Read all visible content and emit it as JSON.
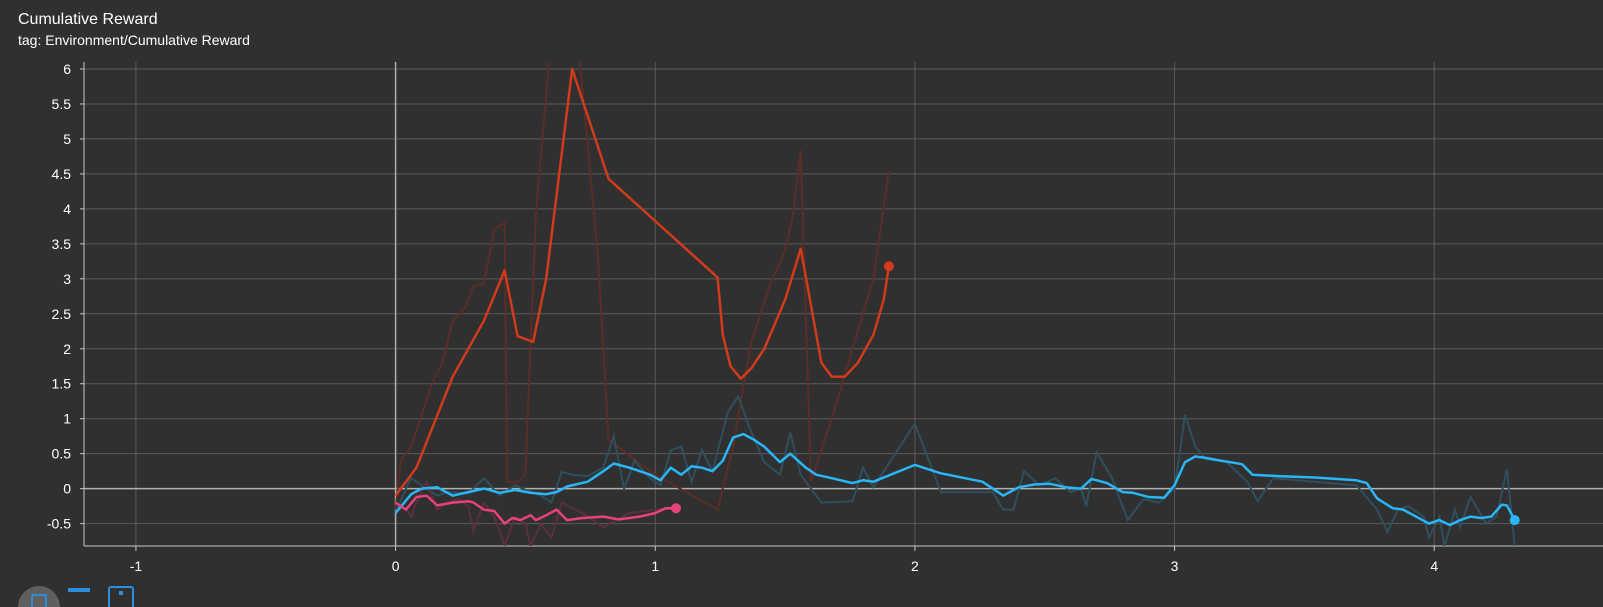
{
  "header": {
    "title": "Cumulative Reward",
    "tag": "tag: Environment/Cumulative Reward"
  },
  "toolbar": {
    "icons": [
      "fit-domain-icon",
      "toggle-log-scale-icon",
      "zoom-box-icon"
    ]
  },
  "colors": {
    "background": "#303030",
    "grid": "#5a5a5a",
    "axis": "#c8c8c8",
    "text": "#ffffff"
  },
  "chart_data": {
    "type": "line",
    "title": "Cumulative Reward",
    "xlabel": "",
    "ylabel": "",
    "xlim": [
      -1.2,
      4.65
    ],
    "ylim": [
      -0.82,
      6.1
    ],
    "x_ticks": [
      -1,
      0,
      1,
      2,
      3,
      4
    ],
    "y_ticks": [
      -0.5,
      0,
      0.5,
      1,
      1.5,
      2,
      2.5,
      3,
      3.5,
      4,
      4.5,
      5,
      5.5,
      6
    ],
    "x_tick_labels": [
      "-1",
      "0",
      "1",
      "2",
      "3",
      "4"
    ],
    "y_tick_labels": [
      "-0.5",
      "0",
      "0.5",
      "1",
      "1.5",
      "2",
      "2.5",
      "3",
      "3.5",
      "4",
      "4.5",
      "5",
      "5.5",
      "6"
    ],
    "grid": true,
    "legend": "none",
    "series": [
      {
        "color": "#d13b1c",
        "raw_color": "#5a2d26",
        "smoothed": [
          [
            0.0,
            -0.1
          ],
          [
            0.08,
            0.3
          ],
          [
            0.22,
            1.6
          ],
          [
            0.34,
            2.4
          ],
          [
            0.42,
            3.12
          ],
          [
            0.47,
            2.18
          ],
          [
            0.53,
            2.1
          ],
          [
            0.58,
            3.0
          ],
          [
            0.68,
            6.0
          ],
          [
            0.82,
            4.43
          ],
          [
            1.24,
            3.02
          ],
          [
            1.26,
            2.2
          ],
          [
            1.29,
            1.75
          ],
          [
            1.33,
            1.57
          ],
          [
            1.37,
            1.72
          ],
          [
            1.42,
            2.0
          ],
          [
            1.5,
            2.7
          ],
          [
            1.56,
            3.43
          ],
          [
            1.64,
            1.8
          ],
          [
            1.68,
            1.6
          ],
          [
            1.73,
            1.6
          ],
          [
            1.78,
            1.8
          ],
          [
            1.84,
            2.2
          ],
          [
            1.88,
            2.7
          ],
          [
            1.9,
            3.18
          ]
        ],
        "raw": [
          [
            0.0,
            -0.3
          ],
          [
            0.02,
            0.4
          ],
          [
            0.06,
            0.6
          ],
          [
            0.14,
            1.5
          ],
          [
            0.18,
            1.8
          ],
          [
            0.22,
            2.4
          ],
          [
            0.27,
            2.6
          ],
          [
            0.3,
            2.9
          ],
          [
            0.34,
            2.92
          ],
          [
            0.38,
            3.72
          ],
          [
            0.42,
            3.8
          ],
          [
            0.43,
            0.1
          ],
          [
            0.47,
            0.1
          ],
          [
            0.5,
            0.2
          ],
          [
            0.54,
            3.9
          ],
          [
            0.6,
            6.5
          ],
          [
            0.7,
            6.5
          ],
          [
            0.78,
            3.3
          ],
          [
            0.82,
            0.7
          ],
          [
            1.0,
            0.2
          ],
          [
            1.24,
            -0.3
          ],
          [
            1.3,
            0.6
          ],
          [
            1.37,
            2.1
          ],
          [
            1.44,
            2.9
          ],
          [
            1.5,
            3.4
          ],
          [
            1.53,
            3.9
          ],
          [
            1.56,
            4.84
          ],
          [
            1.6,
            0.1
          ],
          [
            1.68,
            1.0
          ],
          [
            1.76,
            2.0
          ],
          [
            1.84,
            3.0
          ],
          [
            1.9,
            4.55
          ]
        ],
        "end_point": [
          1.9,
          3.18
        ]
      },
      {
        "color": "#29b6f6",
        "raw_color": "#2f4f5d",
        "smoothed": [
          [
            0.0,
            -0.35
          ],
          [
            0.06,
            -0.08
          ],
          [
            0.1,
            0.0
          ],
          [
            0.16,
            0.02
          ],
          [
            0.22,
            -0.1
          ],
          [
            0.28,
            -0.05
          ],
          [
            0.34,
            0.0
          ],
          [
            0.4,
            -0.06
          ],
          [
            0.46,
            -0.02
          ],
          [
            0.52,
            -0.06
          ],
          [
            0.58,
            -0.08
          ],
          [
            0.62,
            -0.05
          ],
          [
            0.66,
            0.03
          ],
          [
            0.74,
            0.1
          ],
          [
            0.8,
            0.25
          ],
          [
            0.84,
            0.36
          ],
          [
            0.9,
            0.3
          ],
          [
            0.94,
            0.25
          ],
          [
            0.98,
            0.2
          ],
          [
            1.02,
            0.12
          ],
          [
            1.06,
            0.3
          ],
          [
            1.1,
            0.2
          ],
          [
            1.14,
            0.32
          ],
          [
            1.18,
            0.3
          ],
          [
            1.22,
            0.25
          ],
          [
            1.26,
            0.4
          ],
          [
            1.3,
            0.73
          ],
          [
            1.34,
            0.78
          ],
          [
            1.38,
            0.7
          ],
          [
            1.42,
            0.6
          ],
          [
            1.48,
            0.38
          ],
          [
            1.52,
            0.5
          ],
          [
            1.58,
            0.3
          ],
          [
            1.62,
            0.2
          ],
          [
            1.68,
            0.15
          ],
          [
            1.76,
            0.08
          ],
          [
            1.8,
            0.12
          ],
          [
            1.84,
            0.1
          ],
          [
            1.92,
            0.22
          ],
          [
            2.0,
            0.34
          ],
          [
            2.1,
            0.22
          ],
          [
            2.26,
            0.1
          ],
          [
            2.34,
            -0.1
          ],
          [
            2.4,
            0.02
          ],
          [
            2.46,
            0.06
          ],
          [
            2.52,
            0.07
          ],
          [
            2.58,
            0.02
          ],
          [
            2.64,
            0.0
          ],
          [
            2.68,
            0.14
          ],
          [
            2.74,
            0.08
          ],
          [
            2.8,
            -0.05
          ],
          [
            2.84,
            -0.06
          ],
          [
            2.9,
            -0.12
          ],
          [
            2.96,
            -0.13
          ],
          [
            3.0,
            0.05
          ],
          [
            3.04,
            0.38
          ],
          [
            3.08,
            0.46
          ],
          [
            3.12,
            0.44
          ],
          [
            3.18,
            0.4
          ],
          [
            3.26,
            0.35
          ],
          [
            3.3,
            0.2
          ],
          [
            3.4,
            0.18
          ],
          [
            3.54,
            0.16
          ],
          [
            3.7,
            0.12
          ],
          [
            3.74,
            0.08
          ],
          [
            3.78,
            -0.14
          ],
          [
            3.84,
            -0.28
          ],
          [
            3.88,
            -0.3
          ],
          [
            3.92,
            -0.38
          ],
          [
            3.98,
            -0.5
          ],
          [
            4.02,
            -0.45
          ],
          [
            4.06,
            -0.52
          ],
          [
            4.1,
            -0.45
          ],
          [
            4.14,
            -0.4
          ],
          [
            4.18,
            -0.42
          ],
          [
            4.22,
            -0.4
          ],
          [
            4.26,
            -0.23
          ],
          [
            4.28,
            -0.24
          ],
          [
            4.31,
            -0.45
          ]
        ],
        "raw": [
          [
            0.0,
            -0.35
          ],
          [
            0.04,
            0.0
          ],
          [
            0.06,
            0.15
          ],
          [
            0.1,
            0.05
          ],
          [
            0.16,
            -0.1
          ],
          [
            0.2,
            -0.05
          ],
          [
            0.28,
            -0.07
          ],
          [
            0.34,
            0.15
          ],
          [
            0.4,
            -0.1
          ],
          [
            0.46,
            0.05
          ],
          [
            0.52,
            -0.05
          ],
          [
            0.56,
            -0.1
          ],
          [
            0.6,
            -0.2
          ],
          [
            0.64,
            0.24
          ],
          [
            0.68,
            0.2
          ],
          [
            0.74,
            0.18
          ],
          [
            0.8,
            0.3
          ],
          [
            0.84,
            0.75
          ],
          [
            0.88,
            0.0
          ],
          [
            0.92,
            0.4
          ],
          [
            0.98,
            0.15
          ],
          [
            1.02,
            0.05
          ],
          [
            1.06,
            0.55
          ],
          [
            1.1,
            0.6
          ],
          [
            1.14,
            0.1
          ],
          [
            1.18,
            0.55
          ],
          [
            1.22,
            0.25
          ],
          [
            1.28,
            1.1
          ],
          [
            1.32,
            1.32
          ],
          [
            1.36,
            0.9
          ],
          [
            1.42,
            0.38
          ],
          [
            1.48,
            0.2
          ],
          [
            1.52,
            0.8
          ],
          [
            1.56,
            0.2
          ],
          [
            1.64,
            -0.2
          ],
          [
            1.76,
            -0.18
          ],
          [
            1.8,
            0.3
          ],
          [
            1.84,
            0.02
          ],
          [
            2.0,
            0.93
          ],
          [
            2.1,
            -0.05
          ],
          [
            2.3,
            -0.05
          ],
          [
            2.34,
            -0.3
          ],
          [
            2.38,
            -0.3
          ],
          [
            2.42,
            0.25
          ],
          [
            2.48,
            0.05
          ],
          [
            2.54,
            0.15
          ],
          [
            2.6,
            -0.05
          ],
          [
            2.64,
            0.0
          ],
          [
            2.66,
            -0.25
          ],
          [
            2.7,
            0.52
          ],
          [
            2.76,
            0.15
          ],
          [
            2.82,
            -0.45
          ],
          [
            2.88,
            -0.15
          ],
          [
            2.94,
            -0.2
          ],
          [
            3.0,
            0.0
          ],
          [
            3.04,
            1.05
          ],
          [
            3.08,
            0.6
          ],
          [
            3.12,
            0.42
          ],
          [
            3.2,
            0.38
          ],
          [
            3.28,
            0.1
          ],
          [
            3.32,
            -0.18
          ],
          [
            3.38,
            0.15
          ],
          [
            3.54,
            0.1
          ],
          [
            3.7,
            0.05
          ],
          [
            3.78,
            -0.3
          ],
          [
            3.82,
            -0.62
          ],
          [
            3.86,
            -0.3
          ],
          [
            3.9,
            -0.25
          ],
          [
            3.96,
            -0.4
          ],
          [
            3.98,
            -0.7
          ],
          [
            4.02,
            -0.4
          ],
          [
            4.04,
            -0.82
          ],
          [
            4.08,
            -0.3
          ],
          [
            4.1,
            -0.55
          ],
          [
            4.14,
            -0.12
          ],
          [
            4.2,
            -0.5
          ],
          [
            4.24,
            -0.4
          ],
          [
            4.28,
            0.28
          ],
          [
            4.31,
            -0.82
          ]
        ],
        "end_point": [
          4.31,
          -0.45
        ]
      },
      {
        "color": "#e8417c",
        "raw_color": "#5a2f3f",
        "smoothed": [
          [
            0.0,
            -0.2
          ],
          [
            0.04,
            -0.3
          ],
          [
            0.08,
            -0.12
          ],
          [
            0.12,
            -0.1
          ],
          [
            0.16,
            -0.24
          ],
          [
            0.22,
            -0.2
          ],
          [
            0.28,
            -0.18
          ],
          [
            0.3,
            -0.2
          ],
          [
            0.34,
            -0.3
          ],
          [
            0.38,
            -0.32
          ],
          [
            0.42,
            -0.5
          ],
          [
            0.45,
            -0.42
          ],
          [
            0.48,
            -0.45
          ],
          [
            0.52,
            -0.38
          ],
          [
            0.54,
            -0.45
          ],
          [
            0.58,
            -0.38
          ],
          [
            0.62,
            -0.3
          ],
          [
            0.66,
            -0.45
          ],
          [
            0.72,
            -0.42
          ],
          [
            0.8,
            -0.4
          ],
          [
            0.86,
            -0.44
          ],
          [
            0.94,
            -0.4
          ],
          [
            1.0,
            -0.35
          ],
          [
            1.04,
            -0.28
          ],
          [
            1.08,
            -0.28
          ]
        ],
        "raw": [
          [
            0.0,
            -0.2
          ],
          [
            0.04,
            -0.3
          ],
          [
            0.06,
            -0.4
          ],
          [
            0.08,
            -0.2
          ],
          [
            0.12,
            0.1
          ],
          [
            0.16,
            -0.3
          ],
          [
            0.2,
            -0.2
          ],
          [
            0.24,
            -0.15
          ],
          [
            0.28,
            -0.25
          ],
          [
            0.3,
            -0.6
          ],
          [
            0.34,
            -0.2
          ],
          [
            0.38,
            -0.4
          ],
          [
            0.42,
            -0.82
          ],
          [
            0.46,
            -0.4
          ],
          [
            0.5,
            -0.5
          ],
          [
            0.52,
            -0.82
          ],
          [
            0.56,
            -0.5
          ],
          [
            0.6,
            -0.7
          ],
          [
            0.64,
            -0.2
          ],
          [
            0.72,
            -0.35
          ],
          [
            0.8,
            -0.55
          ],
          [
            0.9,
            -0.35
          ],
          [
            1.0,
            -0.3
          ],
          [
            1.08,
            -0.28
          ]
        ],
        "end_point": [
          1.08,
          -0.28
        ]
      }
    ]
  }
}
